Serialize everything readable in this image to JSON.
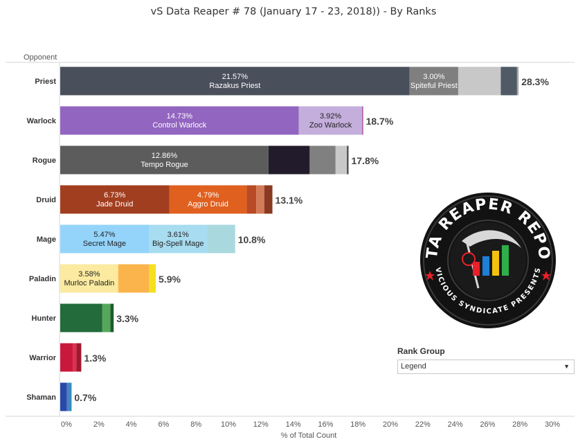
{
  "title": "vS Data Reaper #  78 (January 17 - 23, 2018)) - By Ranks",
  "rank_group": {
    "title": "Rank Group",
    "selected": "Legend"
  },
  "logo": {
    "arc_top": "DATA REAPER REPORT",
    "arc_bottom": "VICIOUS SYNDICATE PRESENTS",
    "colors": {
      "ring": "#121212",
      "ring_edge": "#3a3a3a",
      "star": "#e8202a",
      "bar1": "#e8202a",
      "bar2": "#1e7fd8",
      "bar3": "#f4c20d",
      "bar4": "#2fae4a"
    }
  },
  "chart_data": {
    "type": "bar",
    "orientation": "horizontal",
    "stacked": true,
    "title": "vS Data Reaper #  78 (January 17 - 23, 2018)) - By Ranks",
    "xlabel": "% of Total Count",
    "ylabel": "Opponent",
    "xlim": [
      0,
      31
    ],
    "xticks": [
      "0%",
      "2%",
      "4%",
      "6%",
      "8%",
      "10%",
      "12%",
      "14%",
      "16%",
      "18%",
      "20%",
      "22%",
      "24%",
      "26%",
      "28%",
      "30%"
    ],
    "grid": false,
    "categories": [
      "Priest",
      "Warlock",
      "Rogue",
      "Druid",
      "Mage",
      "Paladin",
      "Hunter",
      "Warrior",
      "Shaman"
    ],
    "bars": [
      {
        "category": "Priest",
        "total": 28.3,
        "total_label": "28.3%",
        "segments": [
          {
            "value": 21.57,
            "pct_label": "21.57%",
            "name": "Razakus Priest",
            "color": "#4a4f5c",
            "text_color": "#ffffff"
          },
          {
            "value": 3.0,
            "pct_label": "3.00%",
            "name": "Spiteful Priest",
            "color": "#7f7f7f",
            "text_color": "#ffffff"
          },
          {
            "value": 2.63,
            "color": "#c8c8c8"
          },
          {
            "value": 1.0,
            "color": "#4f5a66"
          },
          {
            "value": 0.1,
            "color": "#a8a8a8"
          }
        ]
      },
      {
        "category": "Warlock",
        "total": 18.7,
        "total_label": "18.7%",
        "segments": [
          {
            "value": 14.73,
            "pct_label": "14.73%",
            "name": "Control Warlock",
            "color": "#9265c0",
            "text_color": "#ffffff"
          },
          {
            "value": 3.92,
            "pct_label": "3.92%",
            "name": "Zoo Warlock",
            "color": "#c4aedc",
            "text_color": "#222222"
          },
          {
            "value": 0.05,
            "color": "#9e2f86"
          }
        ]
      },
      {
        "category": "Rogue",
        "total": 17.8,
        "total_label": "17.8%",
        "segments": [
          {
            "value": 12.86,
            "pct_label": "12.86%",
            "name": "Tempo Rogue",
            "color": "#5c5c5c",
            "text_color": "#ffffff"
          },
          {
            "value": 2.54,
            "color": "#221b2c"
          },
          {
            "value": 1.6,
            "color": "#808080"
          },
          {
            "value": 0.7,
            "color": "#c8c8c8"
          },
          {
            "value": 0.1,
            "color": "#4a4a4a"
          }
        ]
      },
      {
        "category": "Druid",
        "total": 13.1,
        "total_label": "13.1%",
        "segments": [
          {
            "value": 6.73,
            "pct_label": "6.73%",
            "name": "Jade Druid",
            "color": "#a23e20",
            "text_color": "#ffffff"
          },
          {
            "value": 4.79,
            "pct_label": "4.79%",
            "name": "Aggro Druid",
            "color": "#e06020",
            "text_color": "#ffffff"
          },
          {
            "value": 0.58,
            "color": "#b84a25"
          },
          {
            "value": 0.5,
            "color": "#d37a56"
          },
          {
            "value": 0.5,
            "color": "#8a3a22"
          }
        ]
      },
      {
        "category": "Mage",
        "total": 10.8,
        "total_label": "10.8%",
        "segments": [
          {
            "value": 5.47,
            "pct_label": "5.47%",
            "name": "Secret Mage",
            "color": "#94d4fa",
            "text_color": "#222222"
          },
          {
            "value": 3.61,
            "pct_label": "3.61%",
            "name": "Big-Spell Mage",
            "color": "#a8dcf0",
            "text_color": "#222222"
          },
          {
            "value": 1.72,
            "color": "#a9d9df"
          }
        ]
      },
      {
        "category": "Paladin",
        "total": 5.9,
        "total_label": "5.9%",
        "segments": [
          {
            "value": 3.58,
            "pct_label": "3.58%",
            "name": "Murloc Paladin",
            "color": "#fbeaa0",
            "text_color": "#222222"
          },
          {
            "value": 1.92,
            "color": "#fbb44c"
          },
          {
            "value": 0.4,
            "color": "#f5e020"
          }
        ]
      },
      {
        "category": "Hunter",
        "total": 3.3,
        "total_label": "3.3%",
        "segments": [
          {
            "value": 2.6,
            "color": "#236b3a"
          },
          {
            "value": 0.5,
            "color": "#55a85a"
          },
          {
            "value": 0.2,
            "color": "#1f5a30"
          }
        ]
      },
      {
        "category": "Warrior",
        "total": 1.3,
        "total_label": "1.3%",
        "segments": [
          {
            "value": 0.8,
            "color": "#c8193c"
          },
          {
            "value": 0.2,
            "color": "#e0304a"
          },
          {
            "value": 0.3,
            "color": "#a01830"
          }
        ]
      },
      {
        "category": "Shaman",
        "total": 0.7,
        "total_label": "0.7%",
        "segments": [
          {
            "value": 0.4,
            "color": "#2749a8"
          },
          {
            "value": 0.15,
            "color": "#4a78c8"
          },
          {
            "value": 0.15,
            "color": "#2a8fb8"
          }
        ]
      }
    ]
  }
}
